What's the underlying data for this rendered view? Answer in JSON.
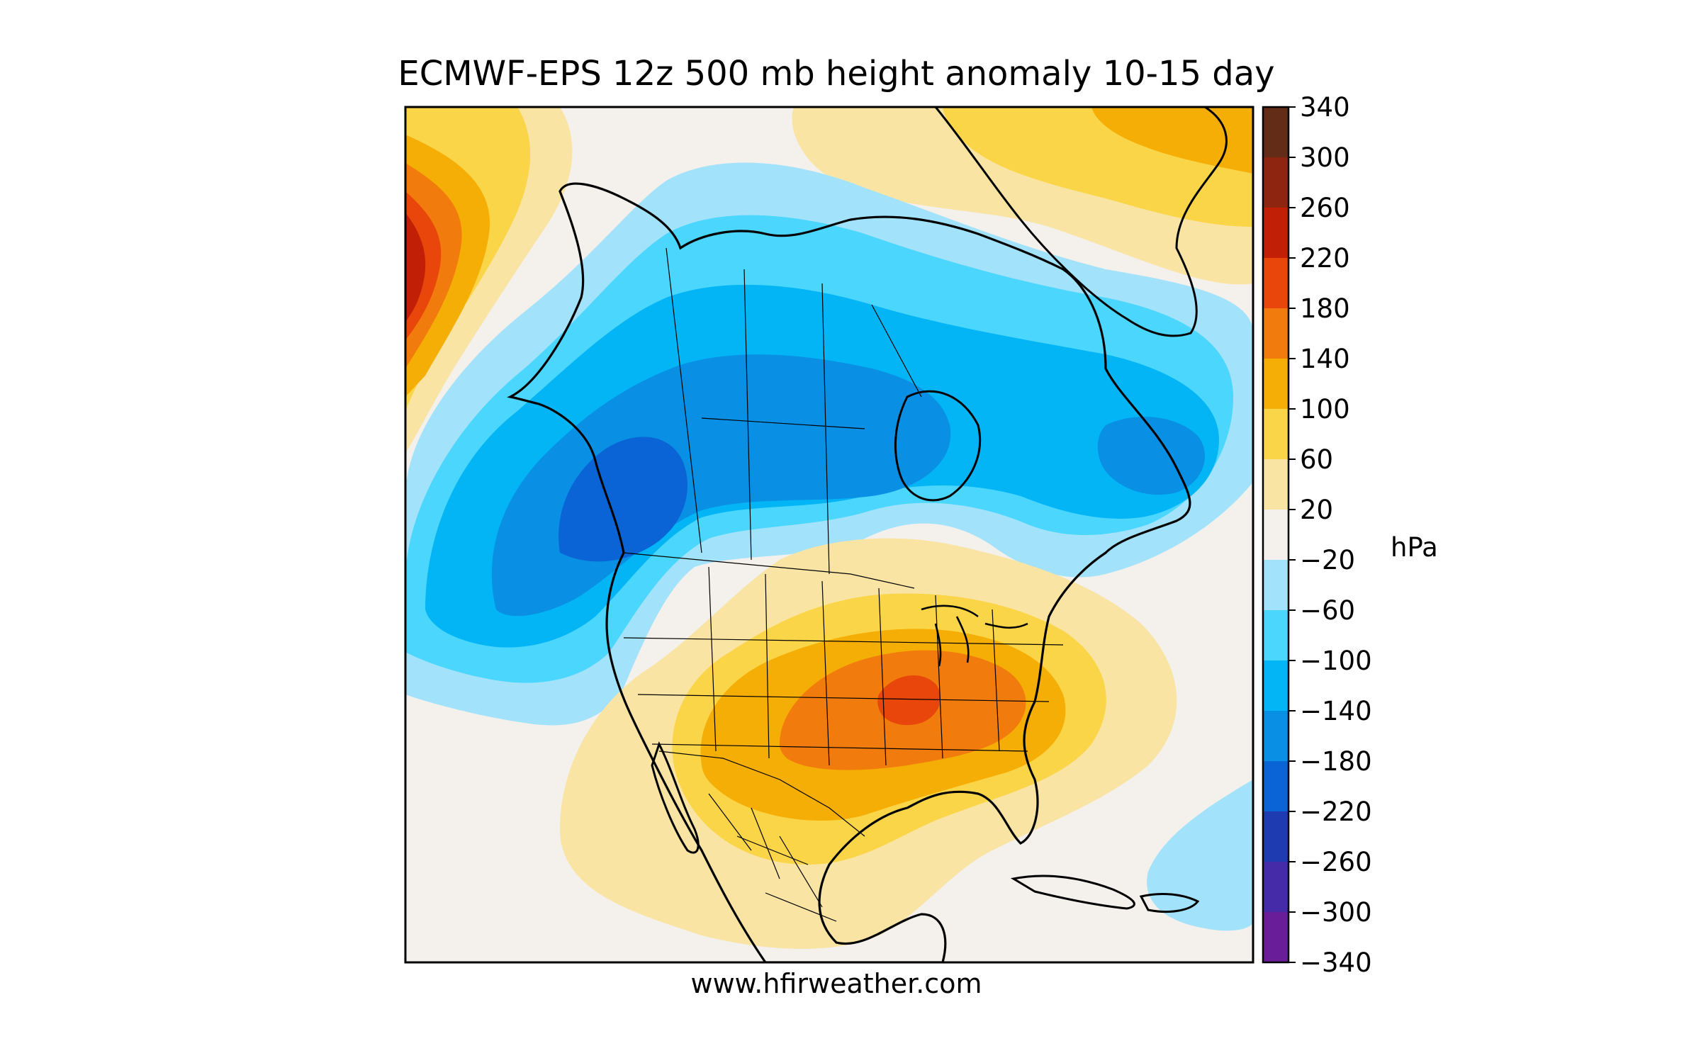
{
  "title": "ECMWF-EPS 12z 500 mb height anomaly 10-15 day",
  "footer": "www.hfirweather.com",
  "colorbar": {
    "unit": "hPa",
    "ticks": [
      "340",
      "300",
      "260",
      "220",
      "180",
      "140",
      "100",
      "60",
      "20",
      "−20",
      "−60",
      "−100",
      "−140",
      "−180",
      "−220",
      "−260",
      "−300",
      "−340"
    ],
    "colors": [
      "#622c17",
      "#8e2510",
      "#c22006",
      "#e8460a",
      "#f17b0c",
      "#f5ae05",
      "#fbd548",
      "#f9e4a4",
      "#f4f0eb",
      "#a2e2fb",
      "#4bd6fd",
      "#03b5f5",
      "#0990e5",
      "#0a64d6",
      "#1f3bb2",
      "#452ba7",
      "#6a1d98"
    ]
  },
  "anomalies": {
    "palette": {
      "neutral": "#f4f0eb",
      "pos20": "#f9e4a4",
      "pos60": "#fbd548",
      "pos100": "#f5ae05",
      "pos140": "#f17b0c",
      "pos180": "#e8460a",
      "pos220": "#c22006",
      "neg20": "#a2e2fb",
      "neg60": "#4bd6fd",
      "neg100": "#03b5f5",
      "neg140": "#0990e5",
      "neg180": "#0a64d6"
    }
  }
}
